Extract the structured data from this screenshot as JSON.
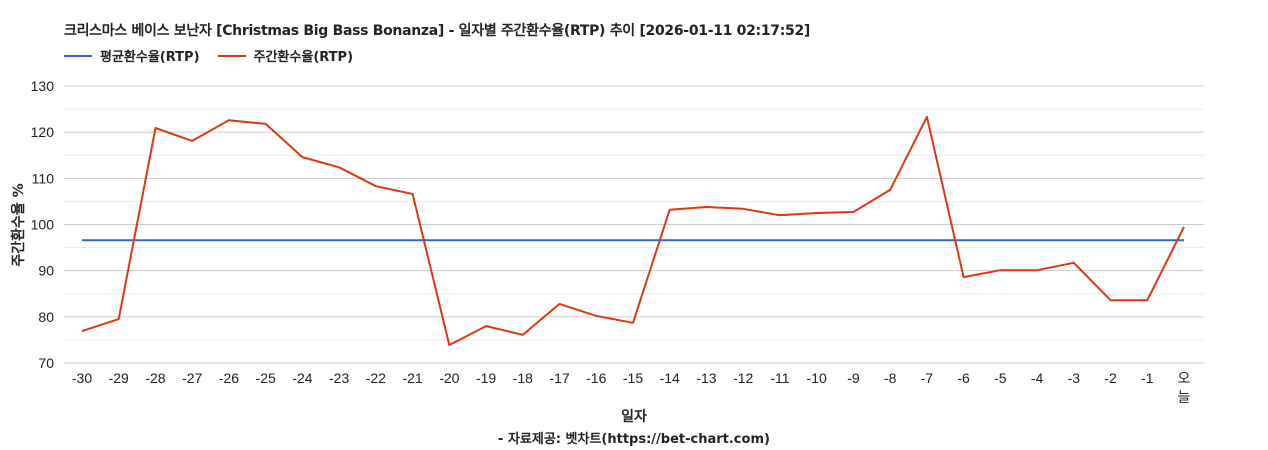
{
  "header": {
    "title": "크리스마스 베이스 보난자 [Christmas Big Bass Bonanza] - 일자별 주간환수율(RTP) 추이 [2026-01-11 02:17:52]"
  },
  "legend": [
    {
      "label": "평균환수율(RTP)",
      "color": "#3366cc"
    },
    {
      "label": "주간환수율(RTP)",
      "color": "#dc3912"
    }
  ],
  "axes": {
    "xlabel": "일자",
    "ylabel": "주간환수율 %"
  },
  "footer": {
    "credit": "- 자료제공: 벳차트(https://bet-chart.com)"
  },
  "chart_data": {
    "type": "line",
    "title": "크리스마스 베이스 보난자 [Christmas Big Bass Bonanza] - 일자별 주간환수율(RTP) 추이 [2026-01-11 02:17:52]",
    "xlabel": "일자",
    "ylabel": "주간환수율 %",
    "ylim": [
      70,
      130
    ],
    "yticks": [
      70,
      80,
      90,
      100,
      110,
      120,
      130
    ],
    "grid": true,
    "legend_position": "top-left",
    "categories": [
      "-30",
      "-29",
      "-28",
      "-27",
      "-26",
      "-25",
      "-24",
      "-23",
      "-22",
      "-21",
      "-20",
      "-19",
      "-18",
      "-17",
      "-16",
      "-15",
      "-14",
      "-13",
      "-12",
      "-11",
      "-10",
      "-9",
      "-8",
      "-7",
      "-6",
      "-5",
      "-4",
      "-3",
      "-2",
      "-1",
      "오늘"
    ],
    "series": [
      {
        "name": "평균환수율(RTP)",
        "color": "#3366cc",
        "values": [
          96.6,
          96.6,
          96.6,
          96.6,
          96.6,
          96.6,
          96.6,
          96.6,
          96.6,
          96.6,
          96.6,
          96.6,
          96.6,
          96.6,
          96.6,
          96.6,
          96.6,
          96.6,
          96.6,
          96.6,
          96.6,
          96.6,
          96.6,
          96.6,
          96.6,
          96.6,
          96.6,
          96.6,
          96.6,
          96.6,
          96.6
        ]
      },
      {
        "name": "주간환수율(RTP)",
        "color": "#dc3912",
        "values": [
          76.9,
          79.5,
          120.9,
          118.1,
          122.6,
          121.8,
          114.6,
          112.4,
          108.3,
          106.6,
          73.9,
          78.0,
          76.1,
          82.8,
          80.2,
          78.7,
          103.2,
          103.8,
          103.4,
          102.0,
          102.5,
          102.7,
          107.5,
          123.3,
          88.6,
          90.1,
          90.1,
          91.7,
          83.6,
          83.6,
          99.5
        ]
      }
    ]
  }
}
